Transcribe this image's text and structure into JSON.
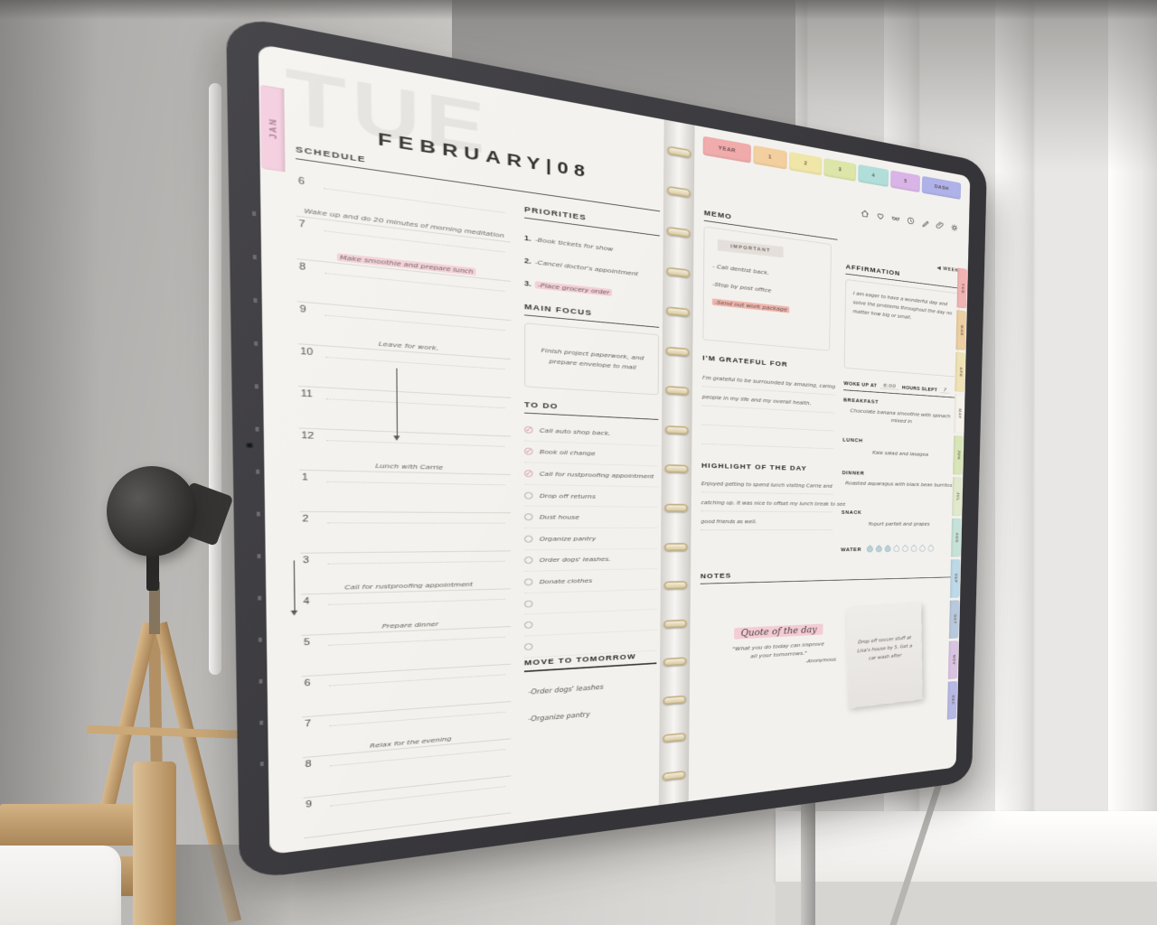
{
  "planner": {
    "day_ghost": "TUE",
    "date_title": "FEBRUARY|08",
    "side_tab_left": "JAN",
    "top_tabs": [
      {
        "label": "YEAR",
        "color": "#f0a9a9"
      },
      {
        "label": "1",
        "color": "#f3cf9f"
      },
      {
        "label": "2",
        "color": "#efe6a8"
      },
      {
        "label": "3",
        "color": "#dce6a8"
      },
      {
        "label": "4",
        "color": "#b2ded9"
      },
      {
        "label": "5",
        "color": "#d8b5e6"
      },
      {
        "label": "DASH",
        "color": "#aeb2e8"
      }
    ],
    "schedule": {
      "title": "SCHEDULE",
      "rows": [
        {
          "time": "6",
          "note": "Wake up and do 20 minutes of morning meditation"
        },
        {
          "time": "7",
          "note": "Make smoothie and prepare lunch",
          "highlight": true
        },
        {
          "time": "8",
          "note": ""
        },
        {
          "time": "9",
          "note": "Leave for work."
        },
        {
          "time": "10",
          "note": ""
        },
        {
          "time": "11",
          "note": ""
        },
        {
          "time": "12",
          "note": "Lunch with Carrie"
        },
        {
          "time": "1",
          "note": ""
        },
        {
          "time": "2",
          "note": ""
        },
        {
          "time": "3",
          "note": "Call for rustproofing appointment"
        },
        {
          "time": "4",
          "note": "Prepare dinner"
        },
        {
          "time": "5",
          "note": ""
        },
        {
          "time": "6",
          "note": ""
        },
        {
          "time": "7",
          "note": "Relax for the evening"
        },
        {
          "time": "8",
          "note": ""
        },
        {
          "time": "9",
          "note": ""
        }
      ]
    },
    "priorities": {
      "title": "PRIORITIES",
      "items": [
        {
          "text": "-Book tickets for show"
        },
        {
          "text": "-Cancel doctor's appointment"
        },
        {
          "text": "-Place grocery order",
          "highlight": true
        }
      ]
    },
    "main_focus": {
      "title": "MAIN FOCUS",
      "text": "Finish project paperwork, and prepare envelope to mail"
    },
    "todo": {
      "title": "TO DO",
      "check_glyph": "✓",
      "items": [
        {
          "text": "Call auto shop back.",
          "checked": true
        },
        {
          "text": "Book oil change",
          "checked": true
        },
        {
          "text": "Call for rustproofing appointment",
          "checked": true
        },
        {
          "text": "Drop off returns",
          "checked": false
        },
        {
          "text": "Dust house",
          "checked": false
        },
        {
          "text": "Organize pantry",
          "checked": false
        },
        {
          "text": "Order dogs' leashes.",
          "checked": false
        },
        {
          "text": "Donate clothes",
          "checked": false
        },
        {
          "text": "",
          "checked": false
        },
        {
          "text": "",
          "checked": false
        },
        {
          "text": "",
          "checked": false
        }
      ]
    },
    "move_to_tomorrow": {
      "title": "MOVE TO TOMORROW",
      "items": [
        "-Order dogs' leashes",
        "-Organize pantry"
      ]
    },
    "memo": {
      "title": "MEMO",
      "badge": "IMPORTANT",
      "items": [
        {
          "text": "- Call dentist back."
        },
        {
          "text": "-Stop by post office"
        },
        {
          "text": "-Send out work package",
          "highlight": true
        }
      ]
    },
    "grateful": {
      "title": "I'M GRATEFUL FOR",
      "line1": "I'm grateful to be surrounded by amazing, caring",
      "line2": "people in my life and my overall health."
    },
    "highlight_of_day": {
      "title": "HIGHLIGHT OF THE DAY",
      "line1": "Enjoyed getting to spend lunch visiting Carrie and",
      "line2": "catching up. It was nice to offset my lunch break to see",
      "line3": "good friends as well."
    },
    "notes": {
      "title": "NOTES",
      "quote_label": "Quote of the day",
      "quote_line1": "\"What you do today can improve",
      "quote_line2": "all your tomorrows.\"",
      "attribution": "-Anonymous",
      "sticky_note": "Drop off soccer stuff at Lisa's house by 5. Get a car wash after"
    },
    "week_link": "◀ WEEK",
    "affirmation": {
      "title": "AFFIRMATION",
      "text": "I am eager to have a wonderful day and solve the problems throughout the day no matter how big or small."
    },
    "wake": {
      "woke_label": "WOKE UP AT",
      "woke_value": "6:00",
      "slept_label": "HOURS SLEPT",
      "slept_value": "7"
    },
    "meals": {
      "breakfast_label": "BREAKFAST",
      "breakfast": "Chocolate banana smoothie with spinach mixed in",
      "lunch_label": "LUNCH",
      "lunch": "Kale salad and lasagna",
      "dinner_label": "DINNER",
      "dinner": "Roasted asparagus with black bean burritos",
      "snack_label": "SNACK",
      "snack": "Yogurt parfait and grapes"
    },
    "water": {
      "label": "WATER",
      "total": 8,
      "filled": 3
    },
    "month_tabs": [
      {
        "label": "FEB",
        "color": "#f1b3b3"
      },
      {
        "label": "MAR",
        "color": "#eccfa2"
      },
      {
        "label": "APR",
        "color": "#efe2b4"
      },
      {
        "label": "MAY",
        "color": "#f4f2ea"
      },
      {
        "label": "JUN",
        "color": "#d8e5b8"
      },
      {
        "label": "JUL",
        "color": "#e0e9cc"
      },
      {
        "label": "AUG",
        "color": "#c5e2d9"
      },
      {
        "label": "SEP",
        "color": "#bdd8e6"
      },
      {
        "label": "OCT",
        "color": "#b9c9dd"
      },
      {
        "label": "NOV",
        "color": "#d9c3e2"
      },
      {
        "label": "DEC",
        "color": "#b7b9e5"
      }
    ],
    "toolbar_icons": [
      "home-icon",
      "heart-icon",
      "glasses-icon",
      "clock-icon",
      "pen-icon",
      "paperclip-icon",
      "settings-icon"
    ]
  },
  "colors": {
    "page": "#f3f1ed",
    "highlight_pink": "#f3ccd6",
    "highlight_red": "#f0b6ae",
    "jan_tab": "#f2c6d9",
    "chip": "#e4dfda",
    "check": "#cf8f97",
    "drop_fill": "#b9d2da",
    "drop_stroke": "#aabfc8"
  }
}
